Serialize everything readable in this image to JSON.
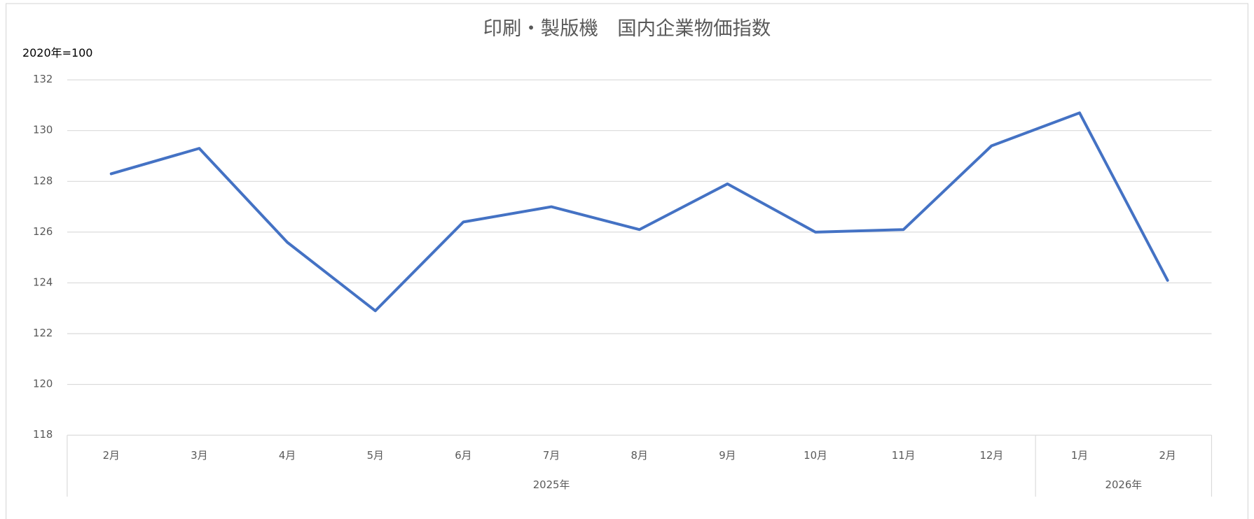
{
  "chart_data": {
    "type": "line",
    "title": "印刷・製版機　国内企業物価指数",
    "y_axis_label": "2020年=100",
    "category_groups": [
      {
        "name": "2025年",
        "categories": [
          "2月",
          "3月",
          "4月",
          "5月",
          "6月",
          "7月",
          "8月",
          "9月",
          "10月",
          "11月",
          "12月"
        ]
      },
      {
        "name": "2026年",
        "categories": [
          "1月",
          "2月"
        ]
      }
    ],
    "values": [
      128.3,
      129.3,
      125.6,
      122.9,
      126.4,
      127.0,
      126.1,
      127.9,
      126.0,
      126.1,
      129.4,
      130.7,
      124.1
    ],
    "color": "#4472c4",
    "ylim": [
      118,
      132
    ],
    "yticks": [
      118,
      120,
      122,
      124,
      126,
      128,
      130,
      132
    ],
    "grid": true
  }
}
